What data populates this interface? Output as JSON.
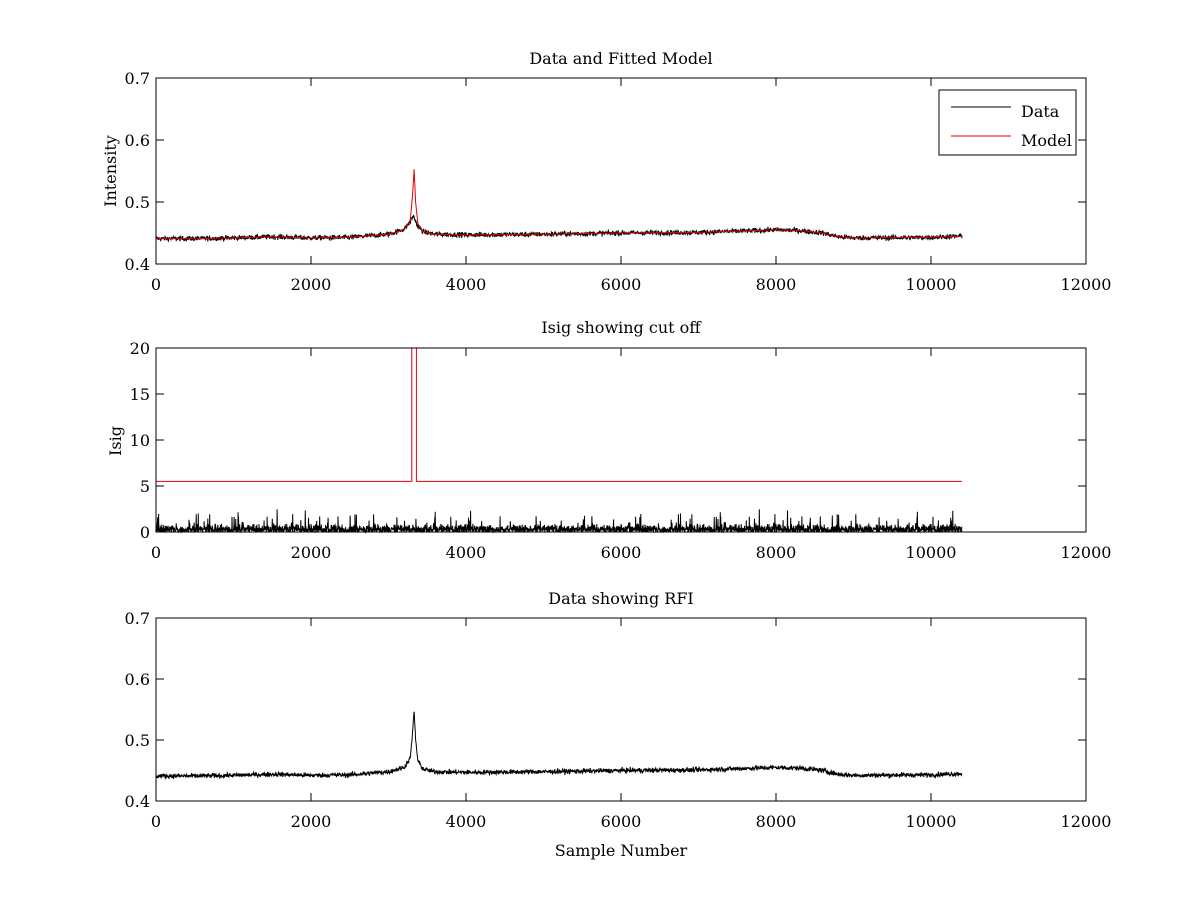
{
  "figure": {
    "background": "#ffffff",
    "series_colors": {
      "data": "#000000",
      "model": "#e00000",
      "cutoff": "#e00000"
    }
  },
  "chart_data": [
    {
      "type": "line",
      "title": "Data and Fitted Model",
      "xlabel": "",
      "ylabel": "Intensity",
      "xlim": [
        0,
        12000
      ],
      "ylim": [
        0.4,
        0.7
      ],
      "xticks": [
        "0",
        "2000",
        "4000",
        "6000",
        "8000",
        "10000",
        "12000"
      ],
      "yticks": [
        "0.4",
        "0.5",
        "0.6",
        "0.7"
      ],
      "legend": {
        "position": "top-right",
        "entries": [
          "Data",
          "Model"
        ]
      },
      "grid": false,
      "series": [
        {
          "name": "Data",
          "color": "#000000",
          "noise": 0.004,
          "x": [
            0,
            500,
            1000,
            1500,
            2000,
            2500,
            3000,
            3200,
            3280,
            3320,
            3340,
            3380,
            3450,
            3600,
            4000,
            5000,
            6000,
            7000,
            7500,
            8000,
            8300,
            8600,
            8800,
            9000,
            10000,
            10400
          ],
          "y": [
            0.441,
            0.441,
            0.442,
            0.444,
            0.442,
            0.443,
            0.448,
            0.456,
            0.468,
            0.478,
            0.472,
            0.46,
            0.452,
            0.448,
            0.447,
            0.448,
            0.45,
            0.451,
            0.453,
            0.455,
            0.454,
            0.45,
            0.444,
            0.442,
            0.443,
            0.445
          ]
        },
        {
          "name": "Model",
          "color": "#e00000",
          "noise": 0,
          "x": [
            0,
            500,
            1000,
            1500,
            2000,
            2500,
            3000,
            3200,
            3280,
            3310,
            3330,
            3350,
            3380,
            3450,
            3600,
            4000,
            5000,
            6000,
            7000,
            7500,
            8000,
            8300,
            8600,
            8800,
            9000,
            10000,
            10400
          ],
          "y": [
            0.441,
            0.441,
            0.442,
            0.444,
            0.442,
            0.443,
            0.448,
            0.455,
            0.47,
            0.51,
            0.553,
            0.5,
            0.465,
            0.452,
            0.448,
            0.447,
            0.448,
            0.45,
            0.451,
            0.453,
            0.455,
            0.454,
            0.45,
            0.444,
            0.442,
            0.443,
            0.445
          ]
        }
      ]
    },
    {
      "type": "line",
      "title": "Isig showing cut off",
      "xlabel": "",
      "ylabel": "Isig",
      "xlim": [
        0,
        12000
      ],
      "ylim": [
        0,
        20
      ],
      "xticks": [
        "0",
        "2000",
        "4000",
        "6000",
        "8000",
        "10000",
        "12000"
      ],
      "yticks": [
        "0",
        "5",
        "10",
        "15",
        "20"
      ],
      "grid": false,
      "series": [
        {
          "name": "Isig",
          "color": "#000000",
          "noise_floor": [
            0,
            2.5
          ],
          "x": [
            0,
            10400
          ]
        },
        {
          "name": "Cut off",
          "color": "#e00000",
          "x": [
            0,
            3300,
            3300,
            3360,
            3360,
            10400
          ],
          "y": [
            5.5,
            5.5,
            20,
            20,
            5.5,
            5.5
          ]
        }
      ]
    },
    {
      "type": "line",
      "title": "Data showing RFI",
      "xlabel": "Sample Number",
      "ylabel": "",
      "xlim": [
        0,
        12000
      ],
      "ylim": [
        0.4,
        0.7
      ],
      "xticks": [
        "0",
        "2000",
        "4000",
        "6000",
        "8000",
        "10000",
        "12000"
      ],
      "yticks": [
        "0.4",
        "0.5",
        "0.6",
        "0.7"
      ],
      "grid": false,
      "series": [
        {
          "name": "Data",
          "color": "#000000",
          "noise": 0.004,
          "x": [
            0,
            500,
            1000,
            1500,
            2000,
            2500,
            3000,
            3200,
            3280,
            3310,
            3330,
            3350,
            3380,
            3450,
            3600,
            4000,
            5000,
            6000,
            7000,
            7500,
            8000,
            8300,
            8600,
            8800,
            9000,
            10000,
            10400
          ],
          "y": [
            0.441,
            0.441,
            0.442,
            0.444,
            0.442,
            0.443,
            0.448,
            0.455,
            0.47,
            0.51,
            0.55,
            0.5,
            0.465,
            0.452,
            0.448,
            0.447,
            0.448,
            0.45,
            0.451,
            0.453,
            0.455,
            0.454,
            0.45,
            0.444,
            0.442,
            0.443,
            0.445
          ]
        }
      ]
    }
  ]
}
